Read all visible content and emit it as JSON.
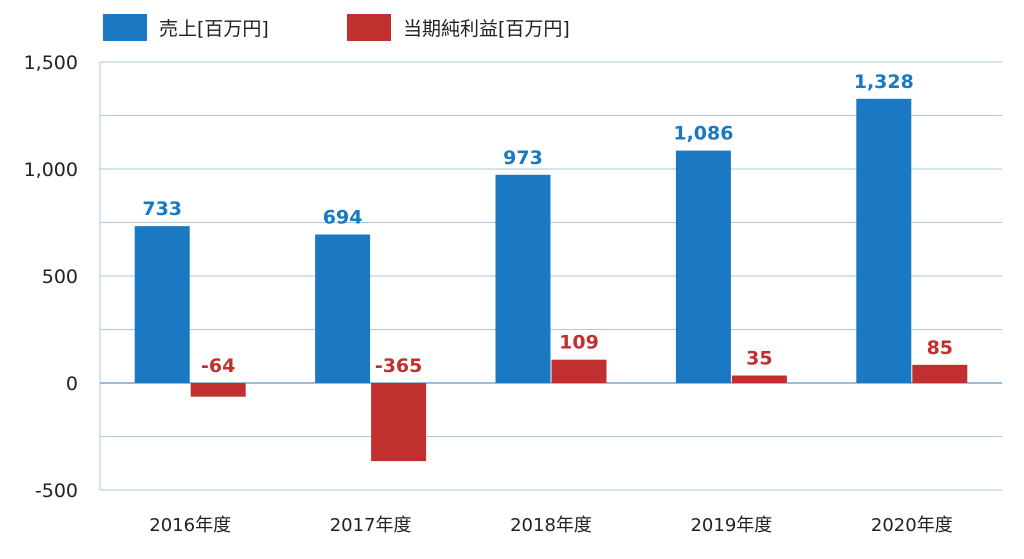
{
  "chart_data": {
    "type": "bar",
    "categories": [
      "2016年度",
      "2017年度",
      "2018年度",
      "2019年度",
      "2020年度"
    ],
    "series": [
      {
        "name": "売上[百万円]",
        "color": "#1a79c2",
        "values": [
          733,
          694,
          973,
          1086,
          1328
        ]
      },
      {
        "name": "当期純利益[百万円]",
        "color": "#c0302f",
        "values": [
          -64,
          -365,
          109,
          35,
          85
        ]
      }
    ],
    "data_labels": {
      "sales": [
        "733",
        "694",
        "973",
        "1,086",
        "1,328"
      ],
      "profit": [
        "-64",
        "-365",
        "109",
        "35",
        "85"
      ]
    },
    "yticks": [
      "1,500",
      "1,000",
      "500",
      "0",
      "-500"
    ],
    "ytick_values": [
      1500,
      1000,
      500,
      0,
      -500
    ],
    "ylim": [
      -500,
      1500
    ],
    "grid": true,
    "legend_position": "top-left",
    "colors": {
      "grid": "#aac8df",
      "zero_line": "#7fa6c8",
      "axis": "#aac8df"
    }
  }
}
